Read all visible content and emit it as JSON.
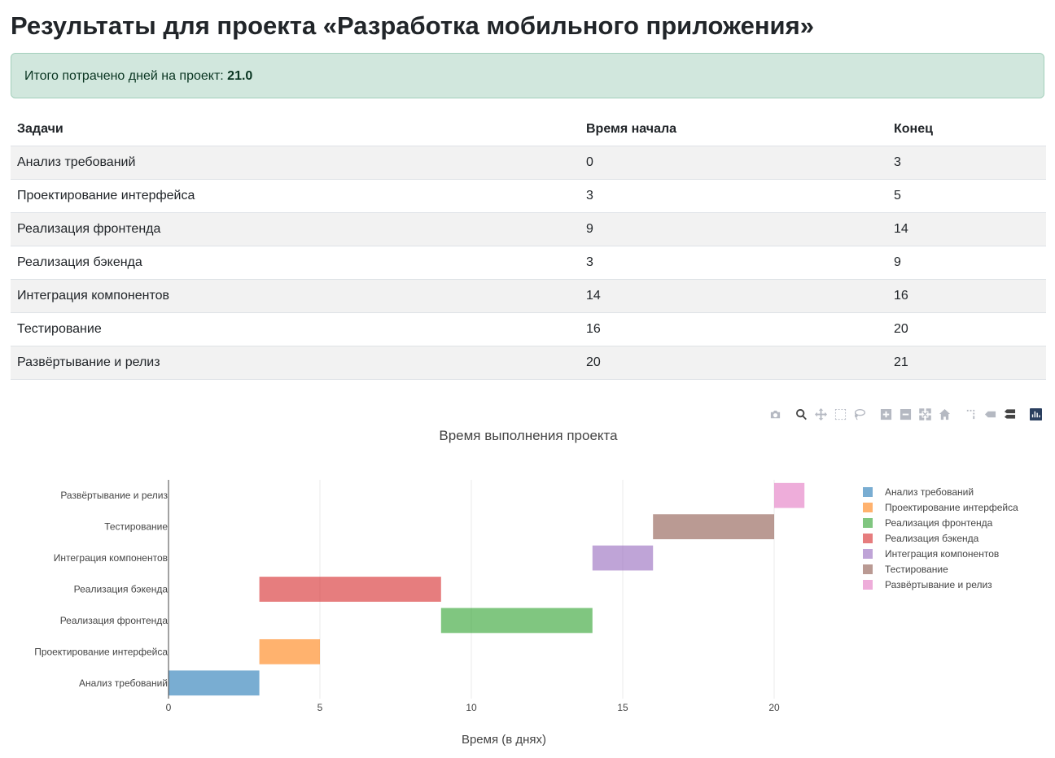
{
  "page": {
    "title": "Результаты для проекта «Разработка мобильного приложения»"
  },
  "summary": {
    "label": "Итого потрачено дней на проект:",
    "value": "21.0"
  },
  "table": {
    "headers": [
      "Задачи",
      "Время начала",
      "Конец"
    ],
    "rows": [
      [
        "Анализ требований",
        "0",
        "3"
      ],
      [
        "Проектирование интерфейса",
        "3",
        "5"
      ],
      [
        "Реализация фронтенда",
        "9",
        "14"
      ],
      [
        "Реализация бэкенда",
        "3",
        "9"
      ],
      [
        "Интеграция компонентов",
        "14",
        "16"
      ],
      [
        "Тестирование",
        "16",
        "20"
      ],
      [
        "Развёртывание и релиз",
        "20",
        "21"
      ]
    ]
  },
  "modebar": {
    "icons": [
      "camera-icon",
      "zoom-icon",
      "pan-icon",
      "box-select-icon",
      "lasso-icon",
      "zoom-in-icon",
      "zoom-out-icon",
      "autoscale-icon",
      "reset-axes-icon",
      "spike-lines-icon",
      "hover-closest-icon",
      "hover-compare-icon",
      "plotly-logo-icon"
    ]
  },
  "chart_data": {
    "type": "bar",
    "orientation": "horizontal",
    "title": "Время выполнения проекта",
    "xlabel": "Время (в днях)",
    "ylabel": "",
    "xlim": [
      0,
      22
    ],
    "xticks": [
      0,
      5,
      10,
      15,
      20
    ],
    "categories": [
      "Анализ требований",
      "Проектирование интерфейса",
      "Реализация фронтенда",
      "Реализация бэкенда",
      "Интеграция компонентов",
      "Тестирование",
      "Развёртывание и релиз"
    ],
    "series": [
      {
        "name": "Анализ требований",
        "start": 0,
        "end": 3,
        "color": "#1f77b4"
      },
      {
        "name": "Проектирование интерфейса",
        "start": 3,
        "end": 5,
        "color": "#ff7f0e"
      },
      {
        "name": "Реализация фронтенда",
        "start": 9,
        "end": 14,
        "color": "#2ca02c"
      },
      {
        "name": "Реализация бэкенда",
        "start": 3,
        "end": 9,
        "color": "#d62728"
      },
      {
        "name": "Интеграция компонентов",
        "start": 14,
        "end": 16,
        "color": "#9467bd"
      },
      {
        "name": "Тестирование",
        "start": 16,
        "end": 20,
        "color": "#8c564b"
      },
      {
        "name": "Развёртывание и релиз",
        "start": 20,
        "end": 21,
        "color": "#e377c2"
      }
    ],
    "grid": true,
    "legend": "right"
  }
}
